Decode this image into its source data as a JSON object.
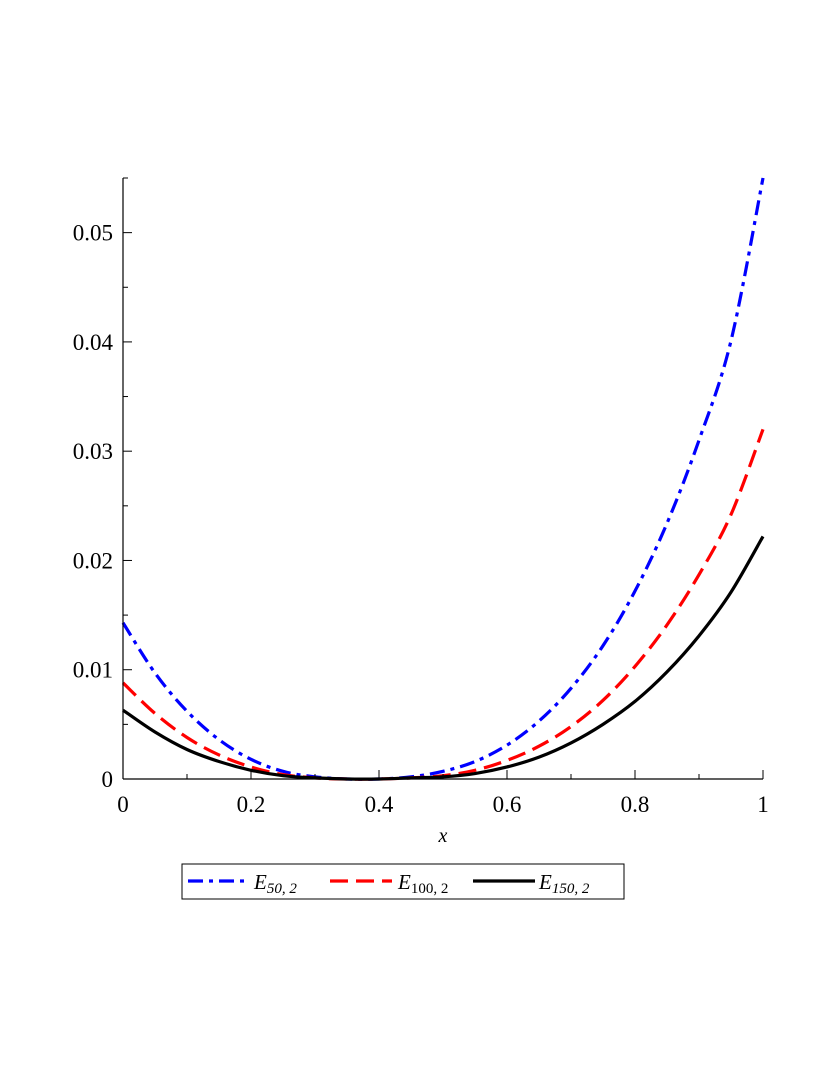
{
  "chart_data": {
    "type": "line",
    "xlabel": "x",
    "ylabel": "",
    "xlim": [
      0,
      1
    ],
    "ylim": [
      0,
      0.055
    ],
    "x_ticks": [
      0,
      0.2,
      0.4,
      0.6,
      0.8,
      1
    ],
    "x_tick_labels": [
      "0",
      "0.2",
      "0.4",
      "0.6",
      "0.8",
      "1"
    ],
    "y_ticks": [
      0,
      0.01,
      0.02,
      0.03,
      0.04,
      0.05
    ],
    "y_tick_labels": [
      "0",
      "0.01",
      "0.02",
      "0.03",
      "0.04",
      "0.05"
    ],
    "grid": false,
    "legend_position": "bottom",
    "x": [
      0,
      0.05,
      0.1,
      0.15,
      0.2,
      0.25,
      0.3,
      0.35,
      0.4,
      0.45,
      0.5,
      0.55,
      0.6,
      0.65,
      0.7,
      0.75,
      0.8,
      0.85,
      0.9,
      0.95,
      1
    ],
    "series": [
      {
        "name": "E50, 2",
        "legend_main": "E",
        "legend_sub": "50, 2",
        "color": "#0000ff",
        "style": "dashdot",
        "values": [
          0.0143,
          0.0097,
          0.0062,
          0.0036,
          0.0018,
          0.0007,
          0.0002,
          0.0,
          0.0,
          0.0002,
          0.0007,
          0.0016,
          0.0031,
          0.0053,
          0.0083,
          0.0122,
          0.0172,
          0.0234,
          0.031,
          0.0401,
          0.055
        ]
      },
      {
        "name": "E100, 2",
        "legend_main": "E",
        "legend_sub": "100, 2",
        "color": "#ff0000",
        "style": "dashed",
        "values": [
          0.0088,
          0.006,
          0.0038,
          0.0022,
          0.0011,
          0.0004,
          0.0001,
          0.0,
          0.0,
          0.0001,
          0.0003,
          0.0008,
          0.0017,
          0.003,
          0.0048,
          0.0072,
          0.0103,
          0.0141,
          0.0187,
          0.0242,
          0.032
        ]
      },
      {
        "name": "E150, 2",
        "legend_main": "E",
        "legend_sub": "150, 2",
        "color": "#000000",
        "style": "solid",
        "values": [
          0.0063,
          0.0043,
          0.0027,
          0.0016,
          0.0008,
          0.0003,
          0.0001,
          0.0,
          0.0,
          0.0001,
          0.0002,
          0.0005,
          0.0011,
          0.002,
          0.0033,
          0.005,
          0.0071,
          0.0098,
          0.0131,
          0.0171,
          0.0222
        ]
      }
    ]
  }
}
